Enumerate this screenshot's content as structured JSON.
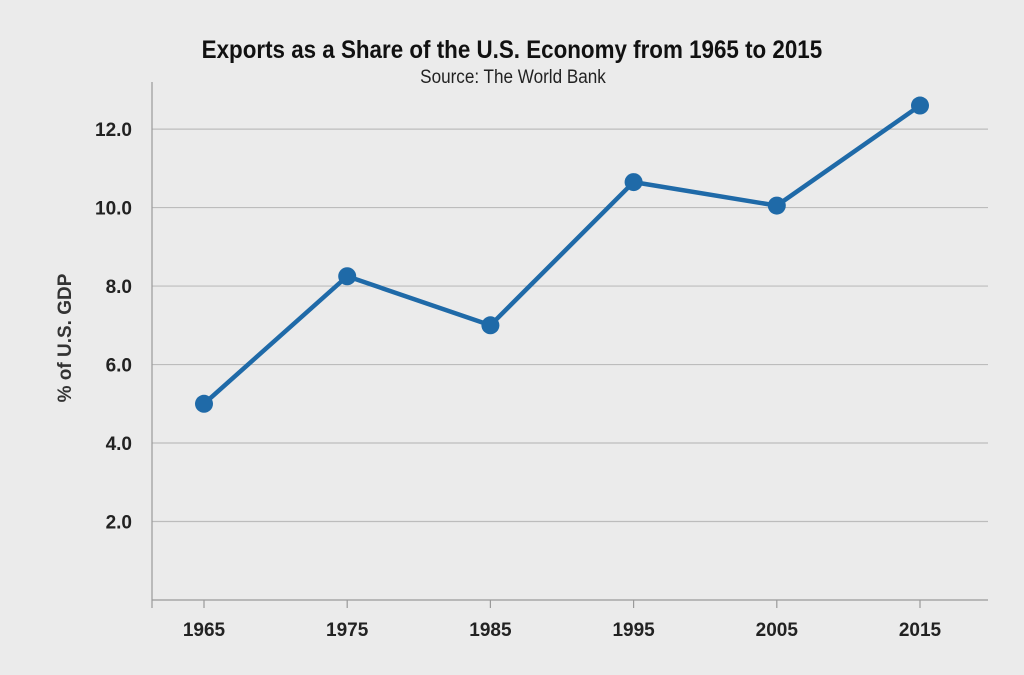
{
  "chart_data": {
    "type": "line",
    "title": "Exports as a Share of the U.S. Economy from 1965 to 2015",
    "subtitle": "Source: The World Bank",
    "xlabel": "",
    "ylabel": "% of U.S. GDP",
    "categories": [
      "1965",
      "1975",
      "1985",
      "1995",
      "2005",
      "2015"
    ],
    "series": [
      {
        "values": [
          5.0,
          8.25,
          7.0,
          10.65,
          10.05,
          12.6
        ]
      }
    ],
    "ylim": [
      0,
      13.2
    ],
    "yticks": [
      "2.0",
      "4.0",
      "6.0",
      "8.0",
      "10.0",
      "12.0"
    ],
    "grid": true,
    "legend": "none",
    "line_color": "#1f6aa8",
    "background_color": "#ebebeb",
    "grid_color": "#bcbcbc"
  }
}
